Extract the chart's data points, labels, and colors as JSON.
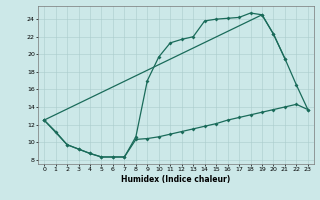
{
  "title": "",
  "xlabel": "Humidex (Indice chaleur)",
  "bg_color": "#cce8e8",
  "grid_color": "#aacccc",
  "line_color": "#1a6b5a",
  "xlim": [
    -0.5,
    23.5
  ],
  "ylim": [
    7.5,
    25.5
  ],
  "xticks": [
    0,
    1,
    2,
    3,
    4,
    5,
    6,
    7,
    8,
    9,
    10,
    11,
    12,
    13,
    14,
    15,
    16,
    17,
    18,
    19,
    20,
    21,
    22,
    23
  ],
  "yticks": [
    8,
    10,
    12,
    14,
    16,
    18,
    20,
    22,
    24
  ],
  "curve1_x": [
    0,
    1,
    2,
    3,
    4,
    5,
    6,
    7,
    8,
    9,
    10,
    11,
    12,
    13,
    14,
    15,
    16,
    17,
    18,
    19,
    20,
    21
  ],
  "curve1_y": [
    12.5,
    11.2,
    9.7,
    9.2,
    8.7,
    8.3,
    8.3,
    8.3,
    10.6,
    17.0,
    19.7,
    21.3,
    21.7,
    22.0,
    23.8,
    24.0,
    24.1,
    24.2,
    24.7,
    24.5,
    22.3,
    19.5
  ],
  "curve2_x": [
    0,
    2,
    3,
    4,
    5,
    6,
    7,
    8,
    9,
    10,
    11,
    12,
    13,
    14,
    15,
    16,
    17,
    18,
    19,
    20,
    21,
    22,
    23
  ],
  "curve2_y": [
    12.5,
    9.7,
    9.2,
    8.7,
    8.3,
    8.3,
    8.3,
    10.3,
    10.4,
    10.6,
    10.9,
    11.2,
    11.5,
    11.8,
    12.1,
    12.5,
    12.8,
    13.1,
    13.4,
    13.7,
    14.0,
    14.3,
    13.7
  ],
  "curve3_x": [
    0,
    19,
    20,
    21,
    22,
    23
  ],
  "curve3_y": [
    12.5,
    24.5,
    22.3,
    19.5,
    16.5,
    13.7
  ]
}
